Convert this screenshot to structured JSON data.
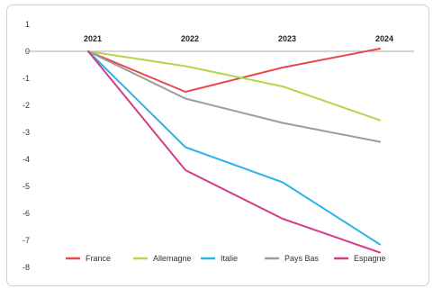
{
  "chart_data": {
    "type": "line",
    "title": "",
    "xlabel": "",
    "ylabel": "",
    "categories": [
      "2021",
      "2022",
      "2023",
      "2024"
    ],
    "yticks": [
      "1",
      "0",
      "-1",
      "-2",
      "-3",
      "-4",
      "-5",
      "-6",
      "-7",
      "-8"
    ],
    "ylim": [
      -8,
      1
    ],
    "grid": false,
    "legend_position": "bottom",
    "series": [
      {
        "name": "France",
        "color": "#e8474c",
        "values": [
          0,
          -1.5,
          -0.6,
          0.1
        ]
      },
      {
        "name": "Allemagne",
        "color": "#b8d44a",
        "values": [
          0,
          -0.55,
          -1.3,
          -2.55
        ]
      },
      {
        "name": "Italie",
        "color": "#2fb2e6",
        "values": [
          0,
          -3.55,
          -4.85,
          -7.15
        ]
      },
      {
        "name": "Pays Bas",
        "color": "#9c9c9c",
        "values": [
          0,
          -1.75,
          -2.65,
          -3.35
        ]
      },
      {
        "name": "Espagne",
        "color": "#d43d86",
        "values": [
          0,
          -4.4,
          -6.2,
          -7.45
        ]
      }
    ]
  }
}
